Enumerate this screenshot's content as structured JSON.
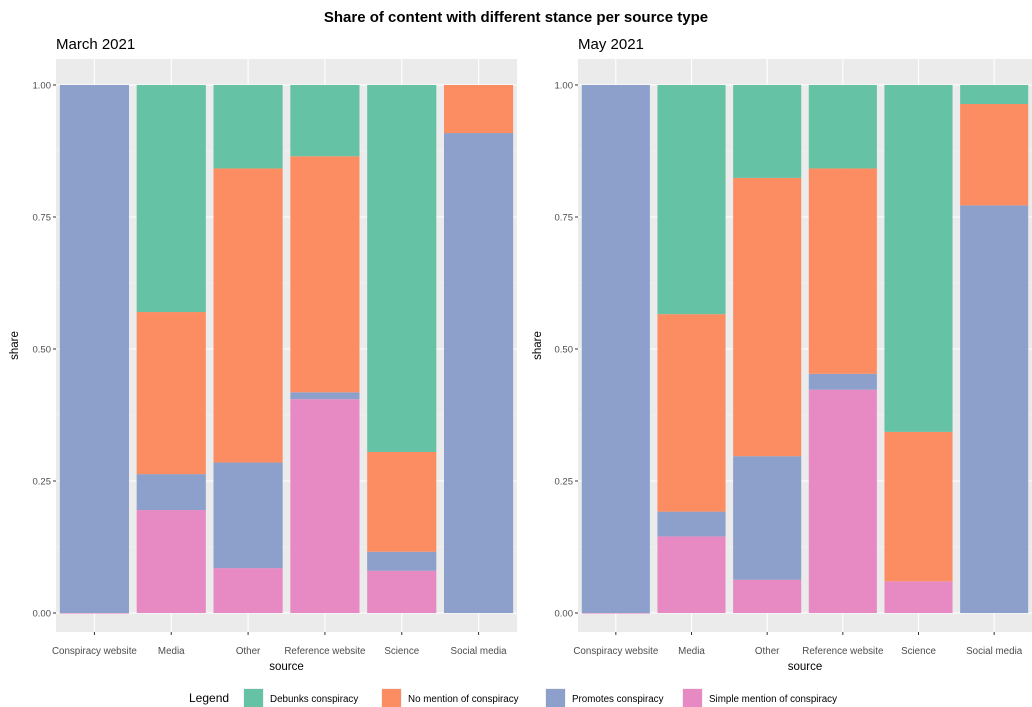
{
  "title": "Share of content with different stance per source type",
  "legend": {
    "title": "Legend",
    "items": [
      {
        "key": "debunks",
        "label": "Debunks conspiracy",
        "color": "#66c2a5"
      },
      {
        "key": "nomention",
        "label": "No mention of conspiracy",
        "color": "#fc8d62"
      },
      {
        "key": "promotes",
        "label": "Promotes conspiracy",
        "color": "#8da0cb"
      },
      {
        "key": "simple",
        "label": "Simple mention of conspiracy",
        "color": "#e78ac3"
      }
    ]
  },
  "chart_data": [
    {
      "type": "bar",
      "stacked": true,
      "panel_title": "March 2021",
      "xlabel": "source",
      "ylabel": "share",
      "ylim": [
        0,
        1
      ],
      "y_ticks": [
        "0.00",
        "0.25",
        "0.50",
        "0.75",
        "1.00"
      ],
      "categories": [
        "Conspiracy website",
        "Media",
        "Other",
        "Reference website",
        "Science",
        "Social media"
      ],
      "series": [
        {
          "name": "Simple mention of conspiracy",
          "key": "simple",
          "values": [
            0.0,
            0.195,
            0.085,
            0.405,
            0.08,
            0.0
          ]
        },
        {
          "name": "Promotes conspiracy",
          "key": "promotes",
          "values": [
            1.0,
            0.068,
            0.2,
            0.013,
            0.036,
            0.909
          ]
        },
        {
          "name": "No mention of conspiracy",
          "key": "nomention",
          "values": [
            0.0,
            0.307,
            0.557,
            0.447,
            0.189,
            0.091
          ]
        },
        {
          "name": "Debunks conspiracy",
          "key": "debunks",
          "values": [
            0.0,
            0.43,
            0.158,
            0.135,
            0.695,
            0.0
          ]
        }
      ]
    },
    {
      "type": "bar",
      "stacked": true,
      "panel_title": "May 2021",
      "xlabel": "source",
      "ylabel": "share",
      "ylim": [
        0,
        1
      ],
      "y_ticks": [
        "0.00",
        "0.25",
        "0.50",
        "0.75",
        "1.00"
      ],
      "categories": [
        "Conspiracy website",
        "Media",
        "Other",
        "Reference website",
        "Science",
        "Social media"
      ],
      "series": [
        {
          "name": "Simple mention of conspiracy",
          "key": "simple",
          "values": [
            0.0,
            0.145,
            0.063,
            0.423,
            0.06,
            0.0
          ]
        },
        {
          "name": "Promotes conspiracy",
          "key": "promotes",
          "values": [
            1.0,
            0.047,
            0.234,
            0.03,
            0.0,
            0.772
          ]
        },
        {
          "name": "No mention of conspiracy",
          "key": "nomention",
          "values": [
            0.0,
            0.374,
            0.527,
            0.389,
            0.283,
            0.192
          ]
        },
        {
          "name": "Debunks conspiracy",
          "key": "debunks",
          "values": [
            0.0,
            0.434,
            0.176,
            0.158,
            0.657,
            0.036
          ]
        }
      ]
    }
  ]
}
